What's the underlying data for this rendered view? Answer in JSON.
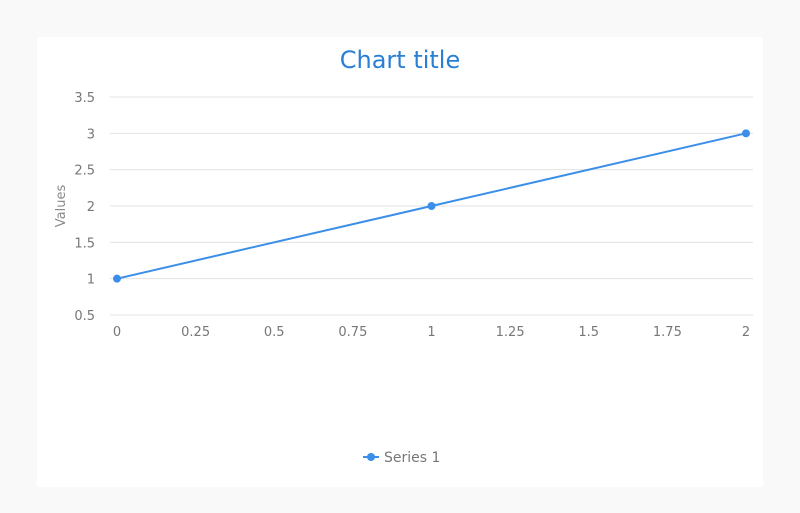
{
  "chart_data": {
    "type": "line",
    "title": "Chart title",
    "xlabel": "",
    "ylabel": "Values",
    "xlim": [
      0,
      2
    ],
    "ylim": [
      0.5,
      3.5
    ],
    "x_ticks": [
      "0",
      "0.25",
      "0.5",
      "0.75",
      "1",
      "1.25",
      "1.5",
      "1.75",
      "2"
    ],
    "y_ticks": [
      "0.5",
      "1",
      "1.5",
      "2",
      "2.5",
      "3",
      "3.5"
    ],
    "grid": "horizontal",
    "legend_position": "bottom",
    "series": [
      {
        "name": "Series 1",
        "color": "#3b8fe8",
        "x": [
          0,
          1,
          2
        ],
        "values": [
          1,
          2,
          3
        ]
      }
    ]
  }
}
